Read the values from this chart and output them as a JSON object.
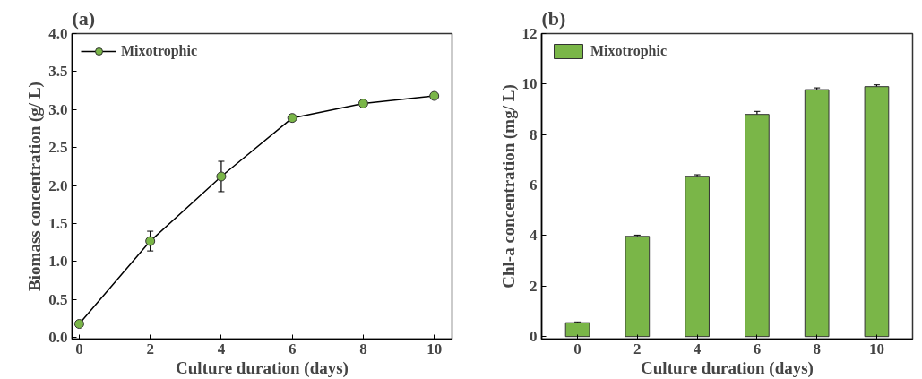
{
  "chart_data": [
    {
      "type": "line",
      "title": "(a)",
      "xlabel": "Culture duration (days)",
      "ylabel": "Biomass concentration (g/ L)",
      "x": [
        0,
        2,
        4,
        6,
        8,
        10
      ],
      "series": [
        {
          "name": "Mixotrophic",
          "color": "#7ab648",
          "values": [
            0.18,
            1.27,
            2.12,
            2.89,
            3.08,
            3.18
          ],
          "errors": [
            null,
            0.13,
            0.2,
            null,
            null,
            null
          ]
        }
      ],
      "xlim": [
        -0.2,
        10.5
      ],
      "xticks": [
        0,
        2,
        4,
        6,
        8,
        10
      ],
      "ylim": [
        -0.02,
        4.0
      ],
      "yticks": [
        {
          "value": 0,
          "label": "0.0"
        },
        0.5,
        {
          "value": 1,
          "label": "1.0"
        },
        1.5,
        {
          "value": 2,
          "label": "2.0"
        },
        2.5,
        {
          "value": 3,
          "label": "3.0"
        },
        3.5,
        {
          "value": 4,
          "label": "4.0"
        }
      ],
      "marker": "circle",
      "line_style": "solid",
      "legend": "top left",
      "grid": false
    },
    {
      "type": "bar",
      "title": "(b)",
      "xlabel": "Culture duration (days)",
      "ylabel": "Chl-a concentration (mg/ L)",
      "categories": [
        "0",
        "2",
        "4",
        "6",
        "8",
        "10"
      ],
      "series": [
        {
          "name": "Mixotrophic",
          "color": "#7ab648",
          "values": [
            0.55,
            3.97,
            6.35,
            8.8,
            9.78,
            9.9
          ],
          "errors": [
            0.03,
            0.05,
            0.06,
            0.12,
            0.07,
            0.07
          ]
        }
      ],
      "ylim": [
        -0.1,
        12
      ],
      "yticks": [
        0,
        2,
        4,
        6,
        8,
        10,
        12
      ],
      "legend": "top left",
      "grid": false
    }
  ]
}
